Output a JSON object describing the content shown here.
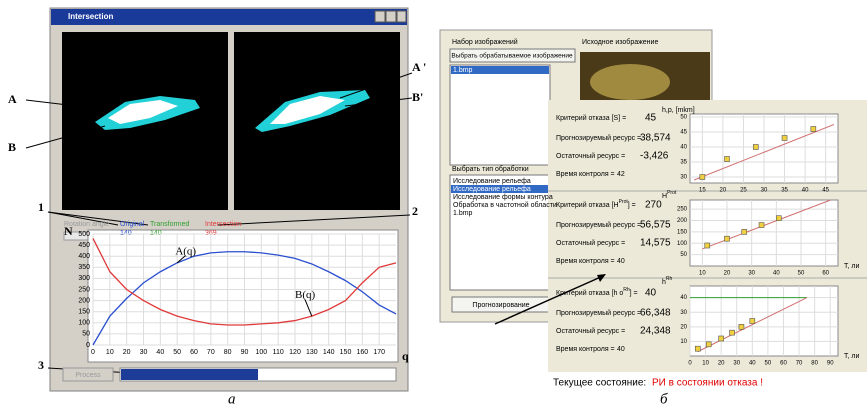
{
  "panel_a": {
    "window_title": "Intersection",
    "callouts": [
      "A",
      "B",
      "A '",
      "B'",
      "1",
      "2",
      "3"
    ],
    "rotation_label": "Rotation angle",
    "legend": [
      {
        "name": "Original",
        "count": "140"
      },
      {
        "name": "Transformed",
        "count": "140"
      },
      {
        "name": "Intersection",
        "count": "369"
      }
    ],
    "process_button": "Process",
    "caption": "а"
  },
  "panel_b": {
    "images_heading": "Набор изображений",
    "source_heading": "Исходное изображение",
    "select_button": "Выбрать обрабатываемое изображение",
    "image_list": [
      "1.bmp"
    ],
    "type_heading": "Выбрать тип обработки",
    "type_list": [
      "Исследование рельефа",
      "Исследование рельефа",
      "Исследование формы контура",
      "Обработка в частотной области",
      "1.bmp"
    ],
    "forecast_button": "Прогнозирование",
    "results": [
      {
        "criterion": [
          "Критерий отказа [S] ="
        ],
        "criterion_value": "45",
        "forecast_label": "Прогнозируемый ресурс =",
        "forecast_value": "38,574",
        "residual_label": "Остаточный ресурс =",
        "residual_value": "-3,426",
        "time_label": "Время контроля =",
        "time_value": "42"
      },
      {
        "criterion": [
          "Критерий отказа [H",
          "Prot",
          "] ="
        ],
        "criterion_value": "270",
        "forecast_label": "Прогнозируемый ресурс =",
        "forecast_value": "56,575",
        "residual_label": "Остаточный ресурс =",
        "residual_value": "14,575",
        "time_label": "Время контроля =",
        "time_value": "40"
      },
      {
        "criterion": [
          "Критерий отказа [h o",
          "Rh",
          "] ="
        ],
        "criterion_value": "40",
        "forecast_label": "Прогнозируемый ресурс =",
        "forecast_value": "66,348",
        "residual_label": "Остаточный ресурс =",
        "residual_value": "24,348",
        "time_label": "Время контроля =",
        "time_value": "40"
      }
    ],
    "status_label": "Текущее состояние:",
    "status_value": "РИ в состоянии отказа !",
    "caption": "б"
  },
  "chart_data": [
    {
      "type": "line",
      "x": [
        0,
        10,
        20,
        30,
        40,
        50,
        60,
        70,
        80,
        90,
        100,
        110,
        120,
        130,
        140,
        150,
        160,
        170,
        180
      ],
      "series": [
        {
          "name": "A(q)",
          "color": "#2a4fd0",
          "values": [
            0,
            130,
            210,
            280,
            330,
            370,
            400,
            415,
            420,
            420,
            415,
            405,
            390,
            365,
            330,
            290,
            240,
            180,
            140
          ]
        },
        {
          "name": "B(q)",
          "color": "#e03a3a",
          "values": [
            480,
            330,
            250,
            200,
            160,
            130,
            110,
            95,
            90,
            90,
            95,
            100,
            110,
            130,
            160,
            200,
            280,
            350,
            370
          ]
        }
      ],
      "xlim": [
        0,
        180
      ],
      "ylim": [
        0,
        500
      ],
      "xticks": [
        0,
        10,
        20,
        30,
        40,
        50,
        60,
        70,
        80,
        90,
        100,
        110,
        120,
        130,
        140,
        150,
        160,
        170
      ],
      "yticks": [
        0,
        50,
        100,
        150,
        200,
        250,
        300,
        350,
        400,
        450,
        500
      ],
      "x_label": "q",
      "y_label": "N",
      "grid": true
    },
    {
      "type": "scatter",
      "series": [
        {
          "color": "#d07070",
          "style": "line",
          "x": [
            13,
            47
          ],
          "values": [
            29,
            47.5
          ]
        },
        {
          "color": "#f0d040",
          "style": "points",
          "x": [
            15,
            21,
            28,
            35,
            42
          ],
          "values": [
            30,
            36,
            40,
            43,
            46
          ]
        }
      ],
      "xlim": [
        12,
        48
      ],
      "ylim": [
        28,
        51
      ],
      "xticks": [
        15,
        20,
        25,
        30,
        35,
        40,
        45
      ],
      "yticks": [
        30,
        35,
        40,
        45,
        50
      ],
      "y_label": "h,p, [mkm]",
      "grid": true
    },
    {
      "type": "scatter",
      "series": [
        {
          "color": "#d07070",
          "style": "line",
          "x": [
            10,
            62
          ],
          "values": [
            75,
            290
          ]
        },
        {
          "color": "#f0d040",
          "style": "points",
          "x": [
            12,
            20,
            27,
            34,
            41
          ],
          "values": [
            90,
            120,
            150,
            180,
            210
          ]
        }
      ],
      "xlim": [
        5,
        65
      ],
      "ylim": [
        0,
        290
      ],
      "xticks": [
        10,
        20,
        30,
        40,
        50,
        60
      ],
      "yticks": [
        50,
        100,
        150,
        200,
        250
      ],
      "y_label": "H",
      "y_label_sup": "Prot",
      "x_label": "T, ли",
      "grid": true
    },
    {
      "type": "scatter",
      "series": [
        {
          "color": "#30a030",
          "style": "line",
          "x": [
            0,
            75
          ],
          "values": [
            40,
            40
          ]
        },
        {
          "color": "#d07070",
          "style": "line",
          "x": [
            5,
            75
          ],
          "values": [
            3,
            40
          ]
        },
        {
          "color": "#f0d040",
          "style": "points",
          "x": [
            5,
            12,
            20,
            27,
            33,
            40
          ],
          "values": [
            5,
            8,
            12,
            16,
            20,
            24
          ]
        }
      ],
      "xlim": [
        0,
        95
      ],
      "ylim": [
        0,
        48
      ],
      "xticks": [
        0,
        10,
        20,
        30,
        40,
        50,
        60,
        70,
        80,
        90
      ],
      "yticks": [
        10,
        20,
        30,
        40
      ],
      "y_label": "h",
      "y_label_sup": "Rh",
      "x_label": "T, ли",
      "grid": true
    }
  ]
}
